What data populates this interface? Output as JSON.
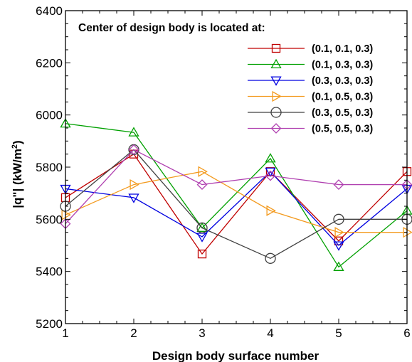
{
  "chart_data": {
    "type": "line",
    "xlabel": "Design body surface number",
    "ylabel_main": "|q\"| (kW/m",
    "ylabel_sup": "2",
    "ylabel_close": ")",
    "xlim": [
      1,
      6
    ],
    "ylim": [
      5200,
      6400
    ],
    "x": [
      1,
      2,
      3,
      4,
      5,
      6
    ],
    "x_ticks": [
      "1",
      "2",
      "3",
      "4",
      "5",
      "6"
    ],
    "y_ticks": [
      "5200",
      "5400",
      "5600",
      "5800",
      "6000",
      "6200",
      "6400"
    ],
    "legend_title": "Center of design body is located at:",
    "legend_placement": "top-right",
    "grid": false,
    "series": [
      {
        "name": "(0.1, 0.1, 0.3)",
        "color": "#c00000",
        "marker": "square",
        "values": [
          5683,
          5850,
          5467,
          5783,
          5517,
          5783
        ]
      },
      {
        "name": "(0.1, 0.3, 0.3)",
        "color": "#00a000",
        "marker": "triangle-up",
        "values": [
          5967,
          5933,
          5567,
          5833,
          5417,
          5633
        ]
      },
      {
        "name": "(0.3, 0.3, 0.3)",
        "color": "#0000e0",
        "marker": "triangle-down",
        "values": [
          5717,
          5683,
          5533,
          5783,
          5500,
          5717
        ]
      },
      {
        "name": "(0.1, 0.5, 0.3)",
        "color": "#f39a1e",
        "marker": "triangle-right",
        "values": [
          5617,
          5733,
          5783,
          5633,
          5550,
          5550
        ]
      },
      {
        "name": "(0.3, 0.5, 0.3)",
        "color": "#404040",
        "marker": "circle",
        "values": [
          5650,
          5867,
          5567,
          5450,
          5600,
          5600
        ]
      },
      {
        "name": "(0.5, 0.5, 0.3)",
        "color": "#b040b0",
        "marker": "diamond",
        "values": [
          5583,
          5867,
          5733,
          5767,
          5733,
          5733
        ]
      }
    ]
  }
}
